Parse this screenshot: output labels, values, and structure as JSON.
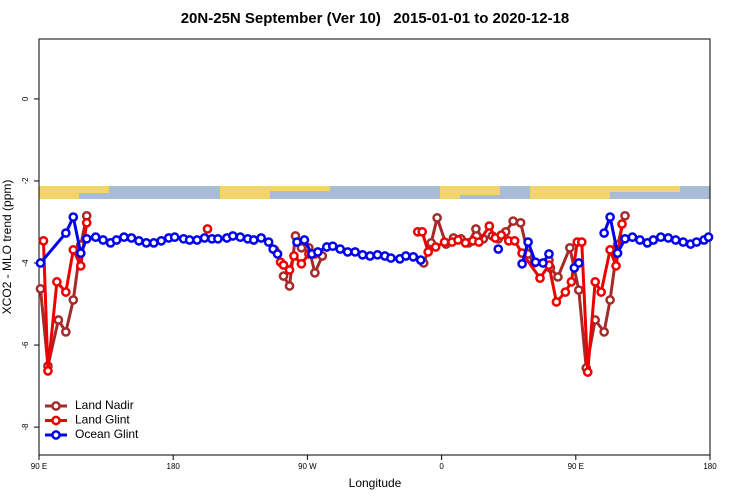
{
  "chart_data": {
    "type": "line",
    "title": "20N-25N September (Ver 10)   2015-01-01 to 2020-12-18",
    "x_label": "Longitude",
    "y_label": "XCO2 - MLO trend (ppm)",
    "xlim": [
      90,
      540
    ],
    "xticks": [
      {
        "value": 90,
        "label": "90 E"
      },
      {
        "value": 180,
        "label": "180"
      },
      {
        "value": 270,
        "label": "90 W"
      },
      {
        "value": 360,
        "label": "0"
      },
      {
        "value": 450,
        "label": "90 E"
      },
      {
        "value": 540,
        "label": "180"
      }
    ],
    "ylim": [
      -8.68,
      1.46
    ],
    "yticks": [
      0,
      -2,
      -4,
      -6,
      -8
    ],
    "legend": "bottom-left",
    "series": [
      {
        "name": "Land Nadir",
        "color": "#a52a2a",
        "x": [
          91,
          96,
          103,
          108,
          113,
          118,
          122,
          null,
          254,
          258,
          262,
          266,
          271,
          275,
          280,
          null,
          348,
          353,
          357,
          363,
          368,
          373,
          378,
          383,
          388,
          394,
          398,
          403,
          408,
          413,
          418,
          422,
          null,
          432,
          433,
          438,
          446,
          452,
          457,
          463,
          469,
          473,
          478,
          483
        ],
        "values": [
          -4.63,
          -6.51,
          -5.39,
          -5.68,
          -4.9,
          -3.56,
          -2.85,
          null,
          -4.32,
          -4.56,
          -3.34,
          -3.63,
          -3.63,
          -4.24,
          -3.83,
          null,
          -4.0,
          -3.51,
          -2.9,
          -3.54,
          -3.39,
          -3.41,
          -3.51,
          -3.17,
          -3.41,
          -3.34,
          -3.41,
          -3.24,
          -2.98,
          -3.02,
          -3.78,
          -4.0,
          null,
          -3.93,
          -4.12,
          -4.34,
          -3.63,
          -4.66,
          -6.56,
          -5.39,
          -5.68,
          -4.9,
          -3.56,
          -2.85
        ]
      },
      {
        "name": "Land Glint",
        "color": "#ee0000",
        "x": [
          93,
          96,
          102,
          108,
          113,
          118,
          122,
          null,
          203,
          null,
          248,
          252,
          254,
          258,
          261,
          266,
          271,
          275,
          null,
          344,
          347,
          351,
          356,
          362,
          367,
          371,
          376,
          381,
          385,
          392,
          396,
          400,
          405,
          409,
          414,
          426,
          432,
          437,
          443,
          447,
          451,
          454,
          458,
          463,
          467,
          473,
          477,
          481
        ],
        "values": [
          -3.46,
          -6.63,
          -4.46,
          -4.71,
          -3.68,
          -4.07,
          -3.02,
          null,
          -3.17,
          null,
          -3.68,
          -3.98,
          -4.05,
          -4.17,
          -3.83,
          -4.02,
          -3.78,
          -3.78,
          null,
          -3.24,
          -3.24,
          -3.73,
          -3.61,
          -3.49,
          -3.49,
          -3.44,
          -3.51,
          -3.46,
          -3.49,
          -3.1,
          -3.39,
          -3.32,
          -3.46,
          -3.46,
          -3.76,
          -4.37,
          -4.05,
          -4.95,
          -4.71,
          -4.46,
          -3.49,
          -3.49,
          -6.66,
          -4.46,
          -4.71,
          -3.68,
          -4.07,
          -3.05
        ]
      },
      {
        "name": "Ocean Glint",
        "color": "#0000ee",
        "x": [
          91,
          108,
          113,
          118,
          122,
          128,
          133,
          138,
          142,
          147,
          152,
          157,
          162,
          167,
          172,
          177,
          181,
          187,
          191,
          196,
          201,
          206,
          210,
          216,
          220,
          225,
          230,
          234,
          239,
          244,
          247,
          250,
          null,
          263,
          268,
          273,
          277,
          283,
          287,
          292,
          297,
          302,
          307,
          312,
          317,
          322,
          326,
          332,
          336,
          341,
          346,
          null,
          398,
          null,
          414,
          418,
          423,
          428,
          432,
          null,
          449,
          452,
          null,
          469,
          473,
          478,
          483,
          488,
          493,
          498,
          502,
          507,
          512,
          517,
          522,
          527,
          531,
          536,
          539
        ],
        "values": [
          -4.0,
          -3.27,
          -2.88,
          -3.76,
          -3.41,
          -3.37,
          -3.44,
          -3.51,
          -3.44,
          -3.37,
          -3.39,
          -3.46,
          -3.51,
          -3.51,
          -3.46,
          -3.39,
          -3.37,
          -3.41,
          -3.44,
          -3.44,
          -3.39,
          -3.41,
          -3.41,
          -3.39,
          -3.34,
          -3.37,
          -3.41,
          -3.44,
          -3.39,
          -3.49,
          -3.66,
          -3.78,
          null,
          -3.49,
          -3.44,
          -3.78,
          -3.73,
          -3.61,
          -3.59,
          -3.66,
          -3.73,
          -3.73,
          -3.8,
          -3.83,
          -3.8,
          -3.83,
          -3.88,
          -3.9,
          -3.83,
          -3.85,
          -3.93,
          null,
          -3.66,
          null,
          -4.02,
          -3.49,
          -3.98,
          -4.0,
          -3.78,
          null,
          -4.12,
          -4.0,
          null,
          -3.27,
          -2.88,
          -3.76,
          -3.41,
          -3.37,
          -3.44,
          -3.51,
          -3.44,
          -3.37,
          -3.39,
          -3.44,
          -3.49,
          -3.54,
          -3.49,
          -3.44,
          -3.37
        ]
      }
    ]
  }
}
